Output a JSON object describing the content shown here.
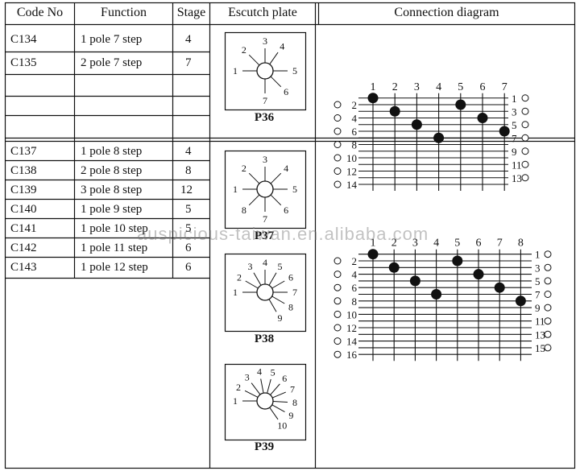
{
  "headers": {
    "code": "Code No",
    "function": "Function",
    "stage": "Stage",
    "plate": "Escutch plate",
    "diagram": "Connection diagram"
  },
  "group1": [
    {
      "code": "C134",
      "function": "1 pole 7 step",
      "stage": "4"
    },
    {
      "code": "C135",
      "function": "2 pole 7 step",
      "stage": "7"
    }
  ],
  "group2": [
    {
      "code": "C137",
      "function": "1 pole 8 step",
      "stage": "4"
    },
    {
      "code": "C138",
      "function": "2 pole 8 step",
      "stage": "8"
    },
    {
      "code": "C139",
      "function": "3 pole 8 step",
      "stage": "12"
    },
    {
      "code": "C140",
      "function": "1 pole 9 step",
      "stage": "5"
    },
    {
      "code": "C141",
      "function": "1 pole 10 step",
      "stage": "5"
    },
    {
      "code": "C142",
      "function": "1 pole 11 step",
      "stage": "6"
    },
    {
      "code": "C143",
      "function": "1 pole 12 step",
      "stage": "6"
    }
  ],
  "plates": [
    {
      "name": "P36",
      "labels": [
        "1",
        "2",
        "3",
        "4",
        "5",
        "6",
        "7"
      ]
    },
    {
      "name": "P37",
      "labels": [
        "1",
        "2",
        "3",
        "4",
        "5",
        "6",
        "7",
        "8"
      ]
    },
    {
      "name": "P38",
      "labels": [
        "1",
        "2",
        "3",
        "4",
        "5",
        "6",
        "7",
        "8",
        "9"
      ]
    },
    {
      "name": "P39",
      "labels": [
        "1",
        "2",
        "3",
        "4",
        "5",
        "6",
        "7",
        "8",
        "9",
        "10"
      ]
    }
  ],
  "diagram1": {
    "columns": [
      "1",
      "2",
      "3",
      "4",
      "5",
      "6",
      "7"
    ],
    "left_terminals": [
      "2",
      "4",
      "6",
      "8",
      "10",
      "12",
      "14"
    ],
    "right_terminals": [
      "1",
      "3",
      "5",
      "7",
      "9",
      "11",
      "13"
    ],
    "contacts": [
      [
        1,
        1
      ],
      [
        2,
        3
      ],
      [
        3,
        5
      ],
      [
        4,
        7
      ],
      [
        5,
        2
      ],
      [
        6,
        4
      ],
      [
        7,
        6
      ]
    ]
  },
  "diagram2": {
    "columns": [
      "1",
      "2",
      "3",
      "4",
      "5",
      "6",
      "7",
      "8"
    ],
    "left_terminals": [
      "2",
      "4",
      "6",
      "8",
      "10",
      "12",
      "14",
      "16"
    ],
    "right_terminals": [
      "1",
      "3",
      "5",
      "7",
      "9",
      "11",
      "13",
      "15"
    ],
    "contacts": [
      [
        1,
        1
      ],
      [
        2,
        3
      ],
      [
        3,
        5
      ],
      [
        4,
        7
      ],
      [
        5,
        2
      ],
      [
        6,
        4
      ],
      [
        7,
        6
      ],
      [
        8,
        8
      ]
    ]
  },
  "watermark": "auspicious-taiwan.en.alibaba.com"
}
